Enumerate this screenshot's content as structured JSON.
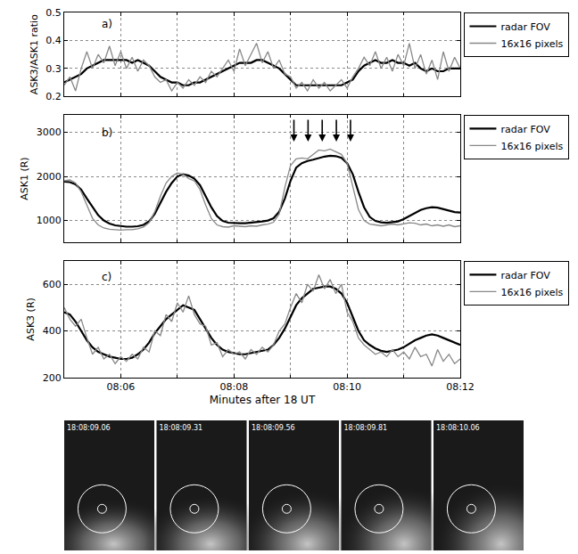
{
  "chart_data": [
    {
      "type": "line",
      "label": "a)",
      "ylabel": "ASK3/ASK1 ratio",
      "x": [
        485,
        485.1,
        485.2,
        485.3,
        485.4,
        485.5,
        485.6,
        485.7,
        485.8,
        485.9,
        486,
        486.1,
        486.2,
        486.3,
        486.4,
        486.5,
        486.6,
        486.7,
        486.8,
        486.9,
        487,
        487.1,
        487.2,
        487.3,
        487.4,
        487.5,
        487.6,
        487.7,
        487.8,
        487.9,
        488,
        488.1,
        488.2,
        488.3,
        488.4,
        488.5,
        488.6,
        488.7,
        488.8,
        488.9,
        489,
        489.1,
        489.2,
        489.3,
        489.4,
        489.5,
        489.6,
        489.7,
        489.8,
        489.9,
        490,
        490.1,
        490.2,
        490.3,
        490.4,
        490.5,
        490.6,
        490.7,
        490.8,
        490.9,
        491,
        491.1,
        491.2,
        491.3,
        491.4,
        491.5,
        491.6,
        491.7,
        491.8,
        491.9,
        492
      ],
      "xlim": [
        485,
        492
      ],
      "xticks": [
        {
          "value": 486,
          "label": "08:06"
        },
        {
          "value": 488,
          "label": "08:08"
        },
        {
          "value": 490,
          "label": "08:10"
        },
        {
          "value": 492,
          "label": "08:12"
        }
      ],
      "ylim": [
        0.2,
        0.5
      ],
      "yticks": [
        0.2,
        0.3,
        0.4,
        0.5
      ],
      "grid": true,
      "legend": "right",
      "tick_labels": "y",
      "series": [
        {
          "name": "radar FOV",
          "color": "#000000",
          "values": [
            0.25,
            0.26,
            0.27,
            0.28,
            0.3,
            0.31,
            0.32,
            0.33,
            0.33,
            0.33,
            0.33,
            0.33,
            0.32,
            0.33,
            0.32,
            0.31,
            0.29,
            0.27,
            0.26,
            0.25,
            0.25,
            0.24,
            0.24,
            0.25,
            0.25,
            0.26,
            0.27,
            0.28,
            0.29,
            0.3,
            0.31,
            0.32,
            0.32,
            0.32,
            0.33,
            0.33,
            0.32,
            0.31,
            0.3,
            0.28,
            0.26,
            0.24,
            0.24,
            0.24,
            0.24,
            0.24,
            0.24,
            0.24,
            0.24,
            0.24,
            0.25,
            0.26,
            0.29,
            0.31,
            0.32,
            0.33,
            0.32,
            0.32,
            0.33,
            0.32,
            0.32,
            0.31,
            0.32,
            0.3,
            0.29,
            0.3,
            0.29,
            0.29,
            0.3,
            0.3,
            0.3
          ]
        },
        {
          "name": "16x16 pixels",
          "color": "#888888",
          "values": [
            0.24,
            0.27,
            0.22,
            0.3,
            0.36,
            0.3,
            0.35,
            0.32,
            0.38,
            0.31,
            0.36,
            0.3,
            0.34,
            0.29,
            0.33,
            0.31,
            0.27,
            0.25,
            0.26,
            0.22,
            0.25,
            0.23,
            0.26,
            0.24,
            0.27,
            0.25,
            0.29,
            0.27,
            0.3,
            0.33,
            0.29,
            0.37,
            0.31,
            0.35,
            0.39,
            0.32,
            0.36,
            0.3,
            0.33,
            0.28,
            0.27,
            0.23,
            0.25,
            0.22,
            0.26,
            0.23,
            0.25,
            0.22,
            0.24,
            0.26,
            0.23,
            0.27,
            0.3,
            0.34,
            0.31,
            0.36,
            0.3,
            0.34,
            0.29,
            0.35,
            0.31,
            0.39,
            0.3,
            0.35,
            0.28,
            0.33,
            0.26,
            0.36,
            0.29,
            0.34,
            0.3
          ]
        }
      ]
    },
    {
      "type": "line",
      "label": "b)",
      "ylabel": "ASK1 (R)",
      "x": [
        485,
        485.1,
        485.2,
        485.3,
        485.4,
        485.5,
        485.6,
        485.7,
        485.8,
        485.9,
        486,
        486.1,
        486.2,
        486.3,
        486.4,
        486.5,
        486.6,
        486.7,
        486.8,
        486.9,
        487,
        487.1,
        487.2,
        487.3,
        487.4,
        487.5,
        487.6,
        487.7,
        487.8,
        487.9,
        488,
        488.1,
        488.2,
        488.3,
        488.4,
        488.5,
        488.6,
        488.7,
        488.8,
        488.9,
        489,
        489.1,
        489.2,
        489.3,
        489.4,
        489.5,
        489.6,
        489.7,
        489.8,
        489.9,
        490,
        490.1,
        490.2,
        490.3,
        490.4,
        490.5,
        490.6,
        490.7,
        490.8,
        490.9,
        491,
        491.1,
        491.2,
        491.3,
        491.4,
        491.5,
        491.6,
        491.7,
        491.8,
        491.9,
        492
      ],
      "xlim": [
        485,
        492
      ],
      "xticks": [
        {
          "value": 486,
          "label": "08:06"
        },
        {
          "value": 488,
          "label": "08:08"
        },
        {
          "value": 490,
          "label": "08:10"
        },
        {
          "value": 492,
          "label": "08:12"
        }
      ],
      "ylim": [
        500,
        3400
      ],
      "yticks": [
        1000,
        2000,
        3000
      ],
      "grid": true,
      "legend": "right",
      "tick_labels": "y",
      "arrows": [
        489.06,
        489.31,
        489.56,
        489.81,
        490.06
      ],
      "series": [
        {
          "name": "radar FOV",
          "color": "#000000",
          "values": [
            1880,
            1870,
            1820,
            1700,
            1500,
            1300,
            1120,
            1000,
            930,
            890,
            870,
            860,
            860,
            870,
            900,
            980,
            1150,
            1400,
            1650,
            1850,
            2000,
            2050,
            2020,
            1950,
            1800,
            1550,
            1300,
            1100,
            990,
            950,
            940,
            940,
            940,
            950,
            960,
            980,
            1000,
            1050,
            1200,
            1500,
            1900,
            2200,
            2300,
            2350,
            2380,
            2420,
            2450,
            2470,
            2460,
            2420,
            2300,
            2050,
            1650,
            1300,
            1080,
            990,
            960,
            950,
            960,
            980,
            1030,
            1100,
            1180,
            1240,
            1280,
            1300,
            1290,
            1260,
            1220,
            1190,
            1180
          ]
        },
        {
          "name": "16x16 pixels",
          "color": "#888888",
          "values": [
            1900,
            1920,
            1850,
            1650,
            1350,
            1050,
            900,
            830,
            800,
            790,
            780,
            790,
            790,
            810,
            850,
            950,
            1200,
            1550,
            1850,
            2000,
            2080,
            2050,
            1950,
            1900,
            1700,
            1350,
            1050,
            900,
            860,
            850,
            880,
            870,
            860,
            880,
            870,
            900,
            920,
            960,
            1150,
            1750,
            2250,
            2400,
            2420,
            2400,
            2500,
            2600,
            2580,
            2620,
            2560,
            2500,
            2300,
            1800,
            1250,
            1000,
            920,
            900,
            880,
            900,
            920,
            900,
            920,
            950,
            940,
            900,
            920,
            880,
            900,
            870,
            900,
            860,
            880
          ]
        }
      ]
    },
    {
      "type": "line",
      "label": "c)",
      "ylabel": "ASK3 (R)",
      "xlabel": "Minutes after 18 UT",
      "x": [
        485,
        485.1,
        485.2,
        485.3,
        485.4,
        485.5,
        485.6,
        485.7,
        485.8,
        485.9,
        486,
        486.1,
        486.2,
        486.3,
        486.4,
        486.5,
        486.6,
        486.7,
        486.8,
        486.9,
        487,
        487.1,
        487.2,
        487.3,
        487.4,
        487.5,
        487.6,
        487.7,
        487.8,
        487.9,
        488,
        488.1,
        488.2,
        488.3,
        488.4,
        488.5,
        488.6,
        488.7,
        488.8,
        488.9,
        489,
        489.1,
        489.2,
        489.3,
        489.4,
        489.5,
        489.6,
        489.7,
        489.8,
        489.9,
        490,
        490.1,
        490.2,
        490.3,
        490.4,
        490.5,
        490.6,
        490.7,
        490.8,
        490.9,
        491,
        491.1,
        491.2,
        491.3,
        491.4,
        491.5,
        491.6,
        491.7,
        491.8,
        491.9,
        492
      ],
      "xlim": [
        485,
        492
      ],
      "xticks": [
        {
          "value": 486,
          "label": "08:06"
        },
        {
          "value": 488,
          "label": "08:08"
        },
        {
          "value": 490,
          "label": "08:10"
        },
        {
          "value": 492,
          "label": "08:12"
        }
      ],
      "ylim": [
        200,
        700
      ],
      "yticks": [
        200,
        400,
        600
      ],
      "grid": true,
      "legend": "right",
      "series": [
        {
          "name": "radar FOV",
          "color": "#000000",
          "values": [
            480,
            470,
            440,
            400,
            360,
            330,
            310,
            300,
            290,
            285,
            280,
            280,
            285,
            300,
            320,
            350,
            390,
            420,
            450,
            470,
            490,
            510,
            500,
            490,
            450,
            410,
            370,
            340,
            320,
            310,
            305,
            300,
            300,
            305,
            310,
            315,
            320,
            340,
            370,
            410,
            460,
            510,
            540,
            560,
            580,
            585,
            590,
            590,
            580,
            560,
            520,
            460,
            400,
            360,
            340,
            325,
            315,
            310,
            315,
            320,
            330,
            345,
            360,
            370,
            380,
            385,
            380,
            370,
            360,
            350,
            340
          ]
        },
        {
          "name": "16x16 pixels",
          "color": "#888888",
          "values": [
            500,
            450,
            420,
            450,
            370,
            300,
            330,
            280,
            300,
            260,
            290,
            270,
            300,
            280,
            330,
            310,
            400,
            380,
            470,
            440,
            520,
            480,
            550,
            470,
            430,
            420,
            340,
            350,
            290,
            320,
            300,
            310,
            280,
            320,
            300,
            330,
            310,
            340,
            400,
            430,
            500,
            560,
            520,
            600,
            570,
            640,
            580,
            620,
            560,
            600,
            480,
            440,
            370,
            340,
            320,
            300,
            310,
            290,
            320,
            290,
            310,
            280,
            330,
            290,
            300,
            250,
            320,
            270,
            300,
            260,
            280
          ]
        }
      ]
    }
  ],
  "image_strip": {
    "timestamps": [
      "18:08:09.06",
      "18:08:09.31",
      "18:08:09.56",
      "18:08:09.81",
      "18:08:10.06"
    ]
  }
}
